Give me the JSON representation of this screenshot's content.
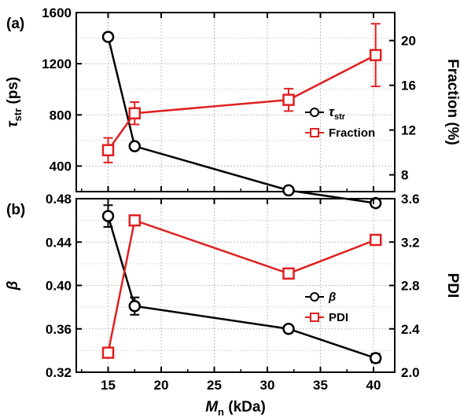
{
  "chart_data": [
    {
      "type": "line",
      "panel_label": "(a)",
      "x_ticks": [
        "15",
        "20",
        "25",
        "30",
        "35",
        "40"
      ],
      "xlim": [
        12,
        42
      ],
      "left_axis": {
        "label_symbol": "τ",
        "label_sub": "str",
        "label_unit": "(ps)",
        "ylim": [
          200,
          1600
        ],
        "ticks": [
          "400",
          "800",
          "1200",
          "1600"
        ]
      },
      "right_axis": {
        "label": "Fraction (%)",
        "ylim": [
          6.5,
          22.5
        ],
        "ticks": [
          "8",
          "12",
          "16",
          "20"
        ]
      },
      "series": [
        {
          "name": "τstr",
          "legend_symbol": "τ",
          "legend_sub": "str",
          "axis": "left",
          "color": "#000000",
          "marker": "circle",
          "x": [
            15,
            17.5,
            32,
            40.2
          ],
          "y": [
            1410,
            555,
            210,
            110
          ],
          "err": [
            0,
            0,
            0,
            0
          ]
        },
        {
          "name": "Fraction",
          "axis": "right",
          "color": "#e02020",
          "marker": "square",
          "x": [
            15,
            17.5,
            32,
            40.2
          ],
          "y": [
            10.2,
            13.5,
            14.7,
            18.7
          ],
          "err": [
            1.1,
            1.0,
            1.0,
            2.8
          ]
        }
      ],
      "legend_position": "right"
    },
    {
      "type": "line",
      "panel_label": "(b)",
      "x_ticks": [
        "15",
        "20",
        "25",
        "30",
        "35",
        "40"
      ],
      "xlim": [
        12,
        42
      ],
      "xlabel_symbol": "M",
      "xlabel_sub": "n",
      "xlabel_unit": "(kDa)",
      "left_axis": {
        "label": "β",
        "ylim": [
          0.32,
          0.48
        ],
        "ticks": [
          "0.32",
          "0.36",
          "0.40",
          "0.44",
          "0.48"
        ]
      },
      "right_axis": {
        "label": "PDI",
        "ylim": [
          2.0,
          3.6
        ],
        "ticks": [
          "2.0",
          "2.4",
          "2.8",
          "3.2",
          "3.6"
        ]
      },
      "series": [
        {
          "name": "β",
          "axis": "left",
          "color": "#000000",
          "marker": "circle",
          "x": [
            15,
            17.5,
            32,
            40.2
          ],
          "y": [
            0.464,
            0.381,
            0.36,
            0.333
          ],
          "err": [
            0.01,
            0.008,
            0.002,
            0.004
          ]
        },
        {
          "name": "PDI",
          "axis": "right",
          "color": "#e02020",
          "marker": "square",
          "x": [
            15,
            17.5,
            32,
            40.2
          ],
          "y": [
            2.18,
            3.4,
            2.91,
            3.22
          ],
          "err": [
            0,
            0,
            0,
            0
          ]
        }
      ],
      "legend_position": "right"
    }
  ]
}
